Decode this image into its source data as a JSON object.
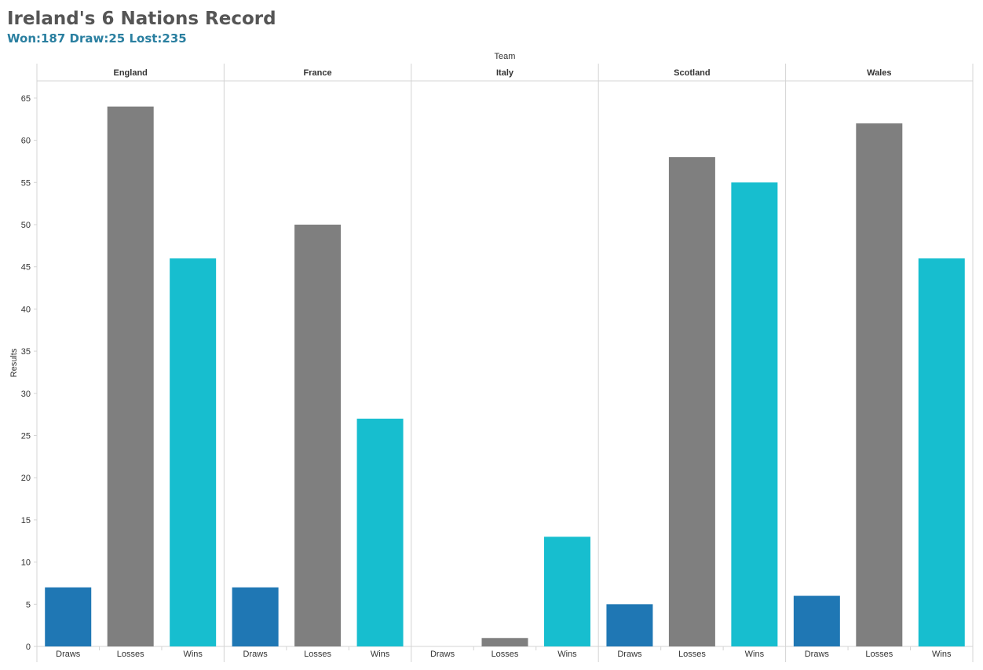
{
  "header": {
    "title": "Ireland's 6 Nations Record",
    "subtitle": "Won:187 Draw:25 Lost:235"
  },
  "colors": {
    "Draws": "#1f77b4",
    "Losses": "#7f7f7f",
    "Wins": "#17becf",
    "text": "#333333",
    "grid": "#d4d4d4"
  },
  "chart_data": {
    "type": "bar",
    "title": "Ireland's 6 Nations Record",
    "subtitle": "Won:187 Draw:25 Lost:235",
    "column_header": "Team",
    "ylabel": "Results",
    "ylim": [
      0,
      67
    ],
    "yticks": [
      0,
      5,
      10,
      15,
      20,
      25,
      30,
      35,
      40,
      45,
      50,
      55,
      60,
      65
    ],
    "categories": [
      "Draws",
      "Losses",
      "Wins"
    ],
    "panels": [
      {
        "team": "England",
        "values": [
          7,
          64,
          46
        ]
      },
      {
        "team": "France",
        "values": [
          7,
          50,
          27
        ]
      },
      {
        "team": "Italy",
        "values": [
          0,
          1,
          13
        ]
      },
      {
        "team": "Scotland",
        "values": [
          5,
          58,
          55
        ]
      },
      {
        "team": "Wales",
        "values": [
          6,
          62,
          46
        ]
      }
    ],
    "grid": false,
    "legend": "none"
  }
}
